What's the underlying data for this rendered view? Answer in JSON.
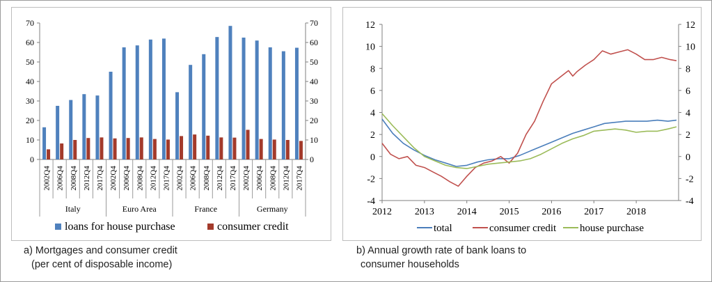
{
  "caption_a": {
    "line1": "a) Mortgages and consumer credit",
    "line2": "(per cent of disposable income)"
  },
  "caption_b": {
    "line1": "b) Annual growth rate of bank loans to",
    "line2": "consumer households"
  },
  "chart_data": [
    {
      "type": "bar",
      "categories": [
        "2002Q4",
        "2006Q4",
        "2008Q4",
        "2012Q4",
        "2017Q4",
        "2002Q4",
        "2006Q4",
        "2008Q4",
        "2012Q4",
        "2017Q4",
        "2002Q4",
        "2006Q4",
        "2008Q4",
        "2012Q4",
        "2017Q4",
        "2002Q4",
        "2006Q4",
        "2008Q4",
        "2012Q4",
        "2017Q4"
      ],
      "groups": [
        "Italy",
        "Euro Area",
        "France",
        "Germany"
      ],
      "series": [
        {
          "name": "loans for house purchase",
          "color": "#4f81bd",
          "values": [
            16.5,
            27.5,
            30.5,
            33.5,
            32.8,
            45,
            57.5,
            58.5,
            61.5,
            62,
            34.5,
            48.5,
            54,
            62.8,
            68.5,
            62.5,
            61,
            57.5,
            55.5,
            57.3
          ]
        },
        {
          "name": "consumer credit",
          "color": "#a33a2b",
          "values": [
            5.2,
            8.2,
            10,
            11,
            11.3,
            10.8,
            11,
            11.3,
            10.5,
            10.2,
            12,
            12.8,
            12.2,
            11.3,
            11.2,
            15.2,
            10.5,
            10.2,
            10,
            9.5
          ]
        }
      ],
      "ylim": [
        0,
        70
      ],
      "yticks": [
        0,
        10,
        20,
        30,
        40,
        50,
        60,
        70
      ],
      "legend_position": "bottom"
    },
    {
      "type": "line",
      "xlim": [
        2012,
        2019
      ],
      "xticks": [
        "2012",
        "2013",
        "2014",
        "2015",
        "2016",
        "2017",
        "2018"
      ],
      "ylim": [
        -4,
        12
      ],
      "yticks": [
        -4,
        -2,
        0,
        2,
        4,
        6,
        8,
        10,
        12
      ],
      "legend_position": "bottom",
      "series": [
        {
          "name": "total",
          "color": "#4a7ebb",
          "x": [
            2012,
            2012.25,
            2012.5,
            2012.75,
            2013,
            2013.25,
            2013.5,
            2013.75,
            2014,
            2014.25,
            2014.5,
            2014.75,
            2015,
            2015.25,
            2015.5,
            2015.75,
            2016,
            2016.25,
            2016.5,
            2016.75,
            2017,
            2017.25,
            2017.5,
            2017.75,
            2018,
            2018.25,
            2018.5,
            2018.75,
            2018.95
          ],
          "y": [
            3.4,
            2.1,
            1.2,
            0.6,
            0.1,
            -0.3,
            -0.6,
            -0.9,
            -0.8,
            -0.5,
            -0.3,
            -0.2,
            -0.2,
            0.1,
            0.5,
            0.9,
            1.3,
            1.7,
            2.1,
            2.4,
            2.7,
            3.0,
            3.1,
            3.2,
            3.2,
            3.2,
            3.3,
            3.2,
            3.3
          ]
        },
        {
          "name": "consumer credit",
          "color": "#c0504d",
          "x": [
            2012,
            2012.2,
            2012.4,
            2012.6,
            2012.8,
            2013,
            2013.2,
            2013.4,
            2013.6,
            2013.8,
            2014,
            2014.2,
            2014.4,
            2014.6,
            2014.8,
            2015,
            2015.2,
            2015.4,
            2015.6,
            2015.8,
            2016,
            2016.2,
            2016.4,
            2016.5,
            2016.6,
            2016.8,
            2017,
            2017.2,
            2017.4,
            2017.6,
            2017.8,
            2018,
            2018.2,
            2018.4,
            2018.6,
            2018.8,
            2018.95
          ],
          "y": [
            1.2,
            0.2,
            -0.2,
            0.0,
            -0.8,
            -1.0,
            -1.4,
            -1.8,
            -2.3,
            -2.7,
            -1.8,
            -1.0,
            -0.6,
            -0.4,
            0.0,
            -0.6,
            0.3,
            2.0,
            3.2,
            5.0,
            6.6,
            7.2,
            7.8,
            7.3,
            7.7,
            8.3,
            8.8,
            9.6,
            9.3,
            9.5,
            9.7,
            9.3,
            8.8,
            8.8,
            9.0,
            8.8,
            8.7
          ]
        },
        {
          "name": "house purchase",
          "color": "#9bbb59",
          "x": [
            2012,
            2012.25,
            2012.5,
            2012.75,
            2013,
            2013.25,
            2013.5,
            2013.75,
            2014,
            2014.25,
            2014.5,
            2014.75,
            2015,
            2015.25,
            2015.5,
            2015.75,
            2016,
            2016.25,
            2016.5,
            2016.75,
            2017,
            2017.25,
            2017.5,
            2017.75,
            2018,
            2018.25,
            2018.5,
            2018.75,
            2018.95
          ],
          "y": [
            3.9,
            2.8,
            1.8,
            0.8,
            0.0,
            -0.4,
            -0.8,
            -1.0,
            -1.1,
            -0.9,
            -0.7,
            -0.6,
            -0.5,
            -0.4,
            -0.2,
            0.2,
            0.7,
            1.2,
            1.6,
            1.9,
            2.3,
            2.4,
            2.5,
            2.4,
            2.2,
            2.3,
            2.3,
            2.5,
            2.7
          ]
        }
      ]
    }
  ]
}
